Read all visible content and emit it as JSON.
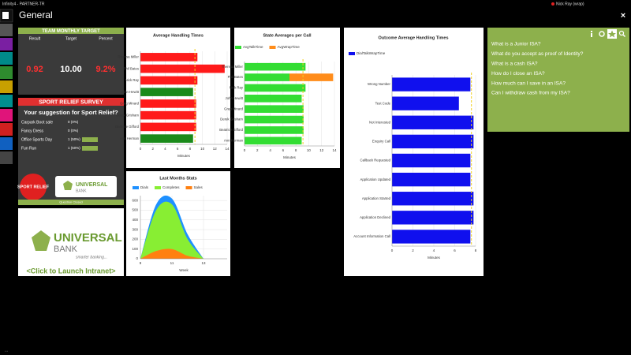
{
  "window": {
    "title": "Infinity4 - PARTNER-TR",
    "user": "Nick Ray (wrap)",
    "close": "×",
    "status": "..."
  },
  "header": {
    "title": "General"
  },
  "target": {
    "title": "TEAM MONTHLY TARGET",
    "columns": [
      "Result",
      "Target",
      "Percent"
    ],
    "values": [
      "0.92",
      "10.00",
      "9.2%"
    ]
  },
  "survey": {
    "title": "SPORT RELIEF SURVEY",
    "question": "Your suggestion for Sport Relief?",
    "options": [
      {
        "label": "Carpark Boot sale",
        "count": 0,
        "percent": 0,
        "value_label": "0 (0%)"
      },
      {
        "label": "Fancy Dress",
        "count": 0,
        "percent": 0,
        "value_label": "0 (0%)"
      },
      {
        "label": "Office Sports Day",
        "count": 1,
        "percent": 50,
        "value_label": "1 (50%)"
      },
      {
        "label": "Fun Run",
        "count": 1,
        "percent": 50,
        "value_label": "1 (50%)"
      }
    ],
    "logo": "SPORT RELIEF",
    "bank": "UNIVERSAL",
    "bank2": "BANK",
    "status": "Question Closed"
  },
  "intranet": {
    "bank": "UNIVERSAL",
    "bank2": "BANK",
    "tagline": "smarter banking...",
    "link": "<Click to Launch Intranet>"
  },
  "faq": {
    "questions": [
      "What is a Junior ISA?",
      "What do you accept as proof of Identity?",
      "What is a cash ISA?",
      "How do I close an ISA?",
      "How much can I save in an ISA?",
      "Can I withdraw cash from my ISA?"
    ]
  },
  "chart_data": [
    {
      "type": "bar",
      "title": "Average Handling Times",
      "categories": [
        "Theresa Miller",
        "Phil Bates",
        "Nick Ray",
        "John Hewitt",
        "Greg Minard",
        "Derek Grisham",
        "Beatrice Gifford",
        "Ann Herman"
      ],
      "values": [
        9.2,
        13.6,
        9.2,
        8.5,
        9,
        9,
        9,
        8.5
      ],
      "colors": [
        "#ff1a1a",
        "#ff1a1a",
        "#ff1a1a",
        "#1a8a1a",
        "#ff1a1a",
        "#ff1a1a",
        "#ff1a1a",
        "#1a8a1a"
      ],
      "target": 8.8,
      "target_color": "#f0d020",
      "xlim": [
        0,
        14
      ],
      "xticks": [
        0,
        2,
        4,
        6,
        8,
        10,
        12,
        14
      ],
      "xlabel": "Minutes",
      "grid": true
    },
    {
      "type": "stacked_bar",
      "title": "State Averages per Call",
      "categories": [
        "Theresa Miller",
        "Phil Bates",
        "Nick Ray",
        "John Hewitt",
        "Greg Minard",
        "Derek Grisham",
        "Beatrice Gifford",
        "Ann Herman"
      ],
      "series": [
        {
          "name": "AvgTalkTime",
          "color": "#33dd33",
          "values": [
            9.5,
            7,
            9.5,
            8.9,
            9.2,
            9.2,
            9.2,
            8.9
          ]
        },
        {
          "name": "AvgWrapTime",
          "color": "#ff8c1a",
          "values": [
            0,
            6.8,
            0,
            0,
            0,
            0,
            0,
            0
          ]
        }
      ],
      "target": 9.1,
      "target_color": "#f0d020",
      "xlim": [
        0,
        14
      ],
      "xticks": [
        0,
        2,
        4,
        6,
        8,
        10,
        12,
        14
      ],
      "xlabel": "Minutes",
      "grid": true
    },
    {
      "type": "area",
      "title": "Last Months Stats",
      "x": [
        9,
        10,
        11,
        12,
        13
      ],
      "series": [
        {
          "name": "Dials",
          "color": "#1e90ff",
          "values": [
            0,
            560,
            620,
            250,
            0
          ]
        },
        {
          "name": "Completes",
          "color": "#88ee33",
          "values": [
            0,
            500,
            560,
            200,
            0
          ]
        },
        {
          "name": "Sales",
          "color": "#ff8010",
          "values": [
            0,
            80,
            100,
            30,
            0
          ]
        }
      ],
      "xlim": [
        9,
        14.5
      ],
      "xticks": [
        9,
        11,
        13
      ],
      "ylim": [
        0,
        650
      ],
      "yticks": [
        0,
        100,
        200,
        300,
        400,
        500,
        600
      ],
      "xlabel": "Week",
      "grid": true
    },
    {
      "type": "bar",
      "title": "Outcome Average Handling Times",
      "categories": [
        "Wrong Number",
        "Test Code",
        "Not Interested",
        "Enquiry Call",
        "Callback Requested",
        "Application Updated",
        "Application Started",
        "Application Declined",
        "Account Information Call"
      ],
      "series": [
        {
          "name": "DialTalkWrapTime",
          "color": "#1010ee",
          "values": [
            7.5,
            6.4,
            7.8,
            7.8,
            7.5,
            7.5,
            7.8,
            7.8,
            7.5
          ]
        }
      ],
      "target": 7.6,
      "target_color": "#f0d020",
      "xlim": [
        0,
        8
      ],
      "xticks": [
        0,
        2,
        4,
        6,
        8
      ],
      "xlabel": "Minutes",
      "grid": true
    }
  ]
}
